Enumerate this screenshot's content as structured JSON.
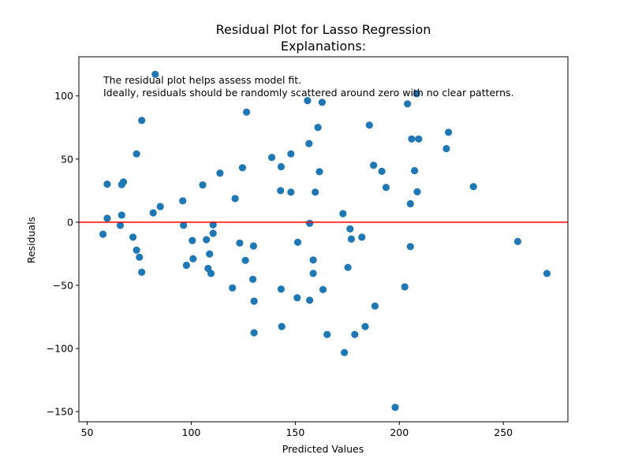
{
  "chart_data": {
    "type": "scatter",
    "title": "Residual Plot for Lasso Regression",
    "subtitle": "Explanations:",
    "xlabel": "Predicted Values",
    "ylabel": "Residuals",
    "xlim": [
      46,
      281
    ],
    "ylim": [
      -158,
      131
    ],
    "xticks": [
      50,
      100,
      150,
      200,
      250
    ],
    "yticks": [
      -150,
      -100,
      -50,
      0,
      50,
      100
    ],
    "grid": false,
    "annotation_lines": [
      "The residual plot helps assess model fit.",
      "Ideally, residuals should be randomly scattered around zero with no clear patterns."
    ],
    "reference_line": {
      "y": 0,
      "color": "#ff0000"
    },
    "point_color": "#1f77b4",
    "series": [
      {
        "points": [
          [
            57.6,
            -9.5
          ],
          [
            59.6,
            30.1
          ],
          [
            59.6,
            3.1
          ],
          [
            65.9,
            -2.5
          ],
          [
            66.6,
            29.8
          ],
          [
            66.6,
            5.6
          ],
          [
            67.4,
            31.9
          ],
          [
            72.0,
            -11.9
          ],
          [
            73.7,
            54.1
          ],
          [
            73.7,
            -22.1
          ],
          [
            75.1,
            -27.7
          ],
          [
            76.2,
            80.6
          ],
          [
            76.2,
            -39.6
          ],
          [
            81.7,
            7.4
          ],
          [
            82.7,
            117.1
          ],
          [
            85.1,
            12.4
          ],
          [
            95.9,
            16.9
          ],
          [
            96.3,
            -2.4
          ],
          [
            97.7,
            -34.1
          ],
          [
            100.5,
            -14.5
          ],
          [
            100.9,
            -28.9
          ],
          [
            105.5,
            29.5
          ],
          [
            107.3,
            -13.8
          ],
          [
            108.1,
            -36.6
          ],
          [
            108.8,
            -25.1
          ],
          [
            109.5,
            -40.6
          ],
          [
            110.5,
            -2.1
          ],
          [
            110.5,
            -8.8
          ],
          [
            113.8,
            38.9
          ],
          [
            119.8,
            -52.0
          ],
          [
            121.1,
            18.7
          ],
          [
            123.3,
            -16.5
          ],
          [
            124.6,
            43.1
          ],
          [
            126.0,
            -30.2
          ],
          [
            126.6,
            87.2
          ],
          [
            129.6,
            -45.2
          ],
          [
            129.9,
            -18.8
          ],
          [
            130.2,
            -62.5
          ],
          [
            130.2,
            -87.5
          ],
          [
            138.7,
            51.3
          ],
          [
            142.9,
            25.0
          ],
          [
            143.2,
            43.9
          ],
          [
            143.2,
            -53.0
          ],
          [
            143.5,
            -82.6
          ],
          [
            147.9,
            23.8
          ],
          [
            147.9,
            54.1
          ],
          [
            150.9,
            -59.8
          ],
          [
            151.2,
            -15.9
          ],
          [
            155.9,
            96.3
          ],
          [
            156.6,
            62.3
          ],
          [
            156.9,
            -61.8
          ],
          [
            156.9,
            -0.9
          ],
          [
            158.6,
            -29.9
          ],
          [
            158.6,
            -40.6
          ],
          [
            159.6,
            23.8
          ],
          [
            160.9,
            75.1
          ],
          [
            161.6,
            40.0
          ],
          [
            162.9,
            94.9
          ],
          [
            163.3,
            -53.3
          ],
          [
            165.3,
            -88.9
          ],
          [
            172.9,
            6.8
          ],
          [
            173.6,
            -103.2
          ],
          [
            175.3,
            -35.8
          ],
          [
            176.3,
            -5.3
          ],
          [
            176.9,
            -13.3
          ],
          [
            178.6,
            -88.9
          ],
          [
            182.0,
            -11.9
          ],
          [
            183.6,
            -82.6
          ],
          [
            185.6,
            76.9
          ],
          [
            187.6,
            45.1
          ],
          [
            188.3,
            -66.4
          ],
          [
            191.6,
            40.3
          ],
          [
            193.6,
            27.6
          ],
          [
            198.0,
            -146.6
          ],
          [
            202.6,
            -51.2
          ],
          [
            203.9,
            93.7
          ],
          [
            205.3,
            14.6
          ],
          [
            205.3,
            -19.3
          ],
          [
            205.9,
            65.9
          ],
          [
            207.3,
            40.8
          ],
          [
            208.3,
            101.7
          ],
          [
            208.6,
            24.1
          ],
          [
            209.3,
            65.9
          ],
          [
            222.6,
            58.3
          ],
          [
            223.6,
            71.2
          ],
          [
            235.6,
            28.2
          ],
          [
            256.9,
            -15.3
          ],
          [
            270.9,
            -40.6
          ]
        ]
      }
    ]
  }
}
